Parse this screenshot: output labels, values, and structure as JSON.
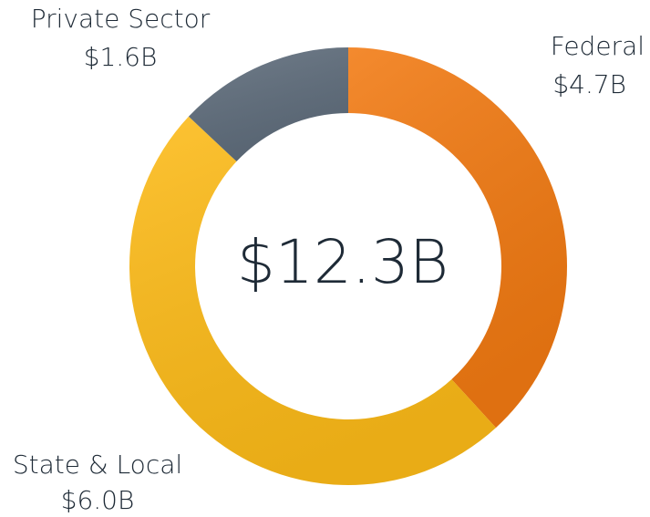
{
  "chart_data": {
    "type": "donut",
    "categories": [
      "Federal",
      "State & Local",
      "Private Sector"
    ],
    "values": [
      4.7,
      6.0,
      1.6
    ],
    "value_labels": [
      "$4.7B",
      "$6.0B",
      "$1.6B"
    ],
    "colors": [
      "#f27a12",
      "#fdbb18",
      "#5f6d7c"
    ],
    "center_label": "$12.3B"
  }
}
